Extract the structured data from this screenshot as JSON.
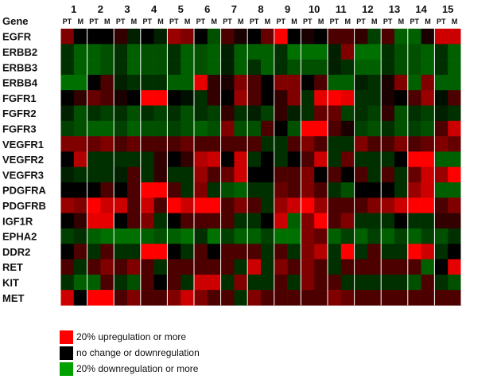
{
  "chart_data": {
    "type": "heatmap",
    "row_header": "Gene",
    "columns": [
      "1",
      "2",
      "3",
      "4",
      "5",
      "6",
      "7",
      "8",
      "9",
      "10",
      "11",
      "12",
      "13",
      "14",
      "15"
    ],
    "subcolumns": [
      "PT",
      "M"
    ],
    "rows": [
      "EGFR",
      "ERBB2",
      "ERBB3",
      "ERBB4",
      "FGFR1",
      "FGFR2",
      "FGFR3",
      "VEGFR1",
      "VEGFR2",
      "VEGFR3",
      "PDGFRA",
      "PDGFRB",
      "IGF1R",
      "EPHA2",
      "DDR2",
      "RET",
      "KIT",
      "MET"
    ],
    "scale": "-1 = 20% downregulation or more (green), 0 = no change (black), 1 = 20% upregulation or more (red)",
    "values": [
      [
        0.5,
        0,
        0,
        0,
        0.2,
        -0.2,
        0,
        -0.2,
        0.6,
        0.5,
        0,
        -0.5,
        0.3,
        0.1,
        0,
        0.4,
        1,
        0,
        0.1,
        0,
        0.3,
        0.3,
        0.2,
        -0.4,
        0.3,
        -0.6,
        -0.6,
        0.1,
        0.8,
        0.8
      ],
      [
        -0.3,
        -0.6,
        -0.6,
        -0.5,
        -0.3,
        -0.6,
        -0.5,
        -0.5,
        -0.3,
        -0.6,
        -0.5,
        -0.6,
        -0.2,
        -0.6,
        -0.6,
        -0.6,
        -0.3,
        -0.7,
        -0.7,
        -0.7,
        -0.2,
        0.5,
        -0.7,
        -0.7,
        -0.3,
        -0.5,
        -0.5,
        -0.6,
        -0.3,
        -0.6
      ],
      [
        -0.3,
        -0.6,
        -0.6,
        -0.5,
        -0.3,
        -0.6,
        -0.5,
        -0.5,
        -0.3,
        -0.6,
        -0.5,
        -0.6,
        -0.2,
        -0.6,
        -0.3,
        -0.6,
        -0.3,
        -0.5,
        -0.5,
        -0.5,
        -0.2,
        -0.3,
        -0.6,
        -0.6,
        -0.3,
        -0.5,
        -0.5,
        -0.6,
        -0.3,
        -0.6
      ],
      [
        -0.7,
        -0.7,
        0,
        0.3,
        -0.2,
        -0.3,
        -0.3,
        -0.3,
        -0.6,
        -0.6,
        0.9,
        0.2,
        0.1,
        0.5,
        0.3,
        0,
        0.5,
        0.5,
        0,
        0.3,
        -0.6,
        -0.6,
        -0.2,
        -0.3,
        0.1,
        0.5,
        -0.6,
        0.5,
        -0.6,
        -0.6
      ],
      [
        0,
        0.2,
        0.4,
        0.3,
        0.1,
        0,
        1,
        1,
        0,
        -0.1,
        -0.3,
        0.2,
        0,
        0.6,
        0.3,
        0,
        0.2,
        0.5,
        -0.3,
        0.9,
        1,
        0.9,
        -0.3,
        -0.3,
        0.1,
        0,
        0.3,
        0.6,
        -0.1,
        0.3
      ],
      [
        -0.2,
        -0.5,
        -0.3,
        -0.4,
        -0.3,
        -0.5,
        -0.3,
        -0.4,
        -0.3,
        -0.5,
        -0.3,
        -0.4,
        0.2,
        -0.3,
        -0.2,
        -0.4,
        0.2,
        -0.2,
        -0.3,
        0.4,
        0.4,
        -0.4,
        -0.3,
        -0.4,
        0.2,
        -0.5,
        -0.3,
        -0.4,
        -0.2,
        -0.3
      ],
      [
        -0.4,
        -0.5,
        -0.6,
        -0.6,
        -0.4,
        -0.6,
        -0.5,
        -0.5,
        -0.4,
        -0.5,
        -0.6,
        -0.5,
        0.5,
        -0.5,
        -0.5,
        0.3,
        0,
        -0.5,
        1,
        1,
        0.3,
        0.1,
        -0.4,
        -0.5,
        -0.3,
        -0.5,
        -0.4,
        -0.5,
        0.3,
        0.8
      ],
      [
        0.5,
        0.5,
        0.4,
        0.5,
        0.3,
        0.4,
        0.3,
        0.3,
        0.3,
        0.4,
        0.3,
        0.3,
        0.3,
        0.3,
        0.3,
        -0.3,
        -0.3,
        0.3,
        0.5,
        0.3,
        -0.3,
        -0.3,
        0.5,
        0.3,
        0.3,
        0.5,
        0.3,
        0.4,
        0.5,
        0.4
      ],
      [
        0,
        0.7,
        -0.3,
        -0.3,
        -0.3,
        -0.3,
        -0.3,
        0.2,
        0,
        0.2,
        0.7,
        0.8,
        0,
        0.8,
        -0.3,
        0,
        -0.3,
        0,
        0.3,
        0.8,
        -0.3,
        0.4,
        -0.3,
        -0.3,
        -0.3,
        0,
        1,
        1,
        -0.6,
        -0.6
      ],
      [
        -0.2,
        -0.3,
        -0.3,
        -0.3,
        -0.2,
        0.3,
        -0.3,
        0.2,
        -0.3,
        -0.3,
        0.6,
        0.3,
        0.4,
        0.8,
        0,
        0,
        0.3,
        0.3,
        0.5,
        0,
        0.3,
        0,
        0.3,
        -0.3,
        0.3,
        -0.3,
        0.4,
        0.8,
        0.6,
        1
      ],
      [
        0,
        0,
        0,
        0.3,
        0,
        0.3,
        1,
        1,
        0.3,
        -0.3,
        0.5,
        -0.3,
        -0.5,
        -0.6,
        -0.3,
        -0.3,
        0.4,
        0.3,
        0.5,
        0.3,
        -0.3,
        -0.5,
        0,
        0,
        0,
        -0.3,
        0.6,
        0.8,
        -0.6,
        -0.6
      ],
      [
        0.6,
        0.5,
        1,
        0.8,
        0.8,
        0.3,
        0.8,
        0.3,
        1,
        0.8,
        1,
        1,
        0.3,
        0.5,
        0.3,
        -0.3,
        0.6,
        0.8,
        1,
        0.6,
        0.3,
        0.3,
        0.3,
        0.5,
        0.6,
        0.8,
        1,
        1,
        0.3,
        0.5
      ],
      [
        0,
        0.2,
        0.9,
        0.9,
        0,
        0.3,
        0.5,
        -0.3,
        0,
        0.3,
        0.3,
        0.3,
        0.3,
        -0.3,
        -0.3,
        0,
        0.8,
        -0.6,
        0.5,
        1,
        0.3,
        0.5,
        -0.3,
        -0.3,
        -0.3,
        0,
        -0.3,
        -0.3,
        0.2,
        0.2
      ],
      [
        -0.4,
        -0.3,
        -0.6,
        -0.7,
        -0.7,
        -0.7,
        -0.6,
        -0.5,
        -0.6,
        -0.7,
        -0.3,
        -0.7,
        -0.4,
        -0.6,
        -0.6,
        -0.4,
        -0.7,
        -0.7,
        0.5,
        0.4,
        -0.6,
        -0.4,
        -0.6,
        -0.4,
        -0.6,
        -0.4,
        -0.6,
        -0.4,
        -0.5,
        -0.3
      ],
      [
        0,
        0.3,
        -0.3,
        0.3,
        -0.3,
        -0.3,
        1,
        1,
        0,
        -0.3,
        0.3,
        0,
        0.3,
        0.3,
        0.3,
        -0.3,
        0.3,
        -0.3,
        0.5,
        0.7,
        -0.3,
        1,
        -0.3,
        0.3,
        -0.3,
        -0.3,
        1,
        0.8,
        -0.3,
        0
      ],
      [
        0.3,
        -0.3,
        0.3,
        0.5,
        0.3,
        0.5,
        0.3,
        -0.3,
        0.3,
        0.3,
        0.3,
        0.3,
        0.3,
        -0.3,
        0.8,
        -0.3,
        0.5,
        0.3,
        0.5,
        0.3,
        -0.3,
        0.3,
        0.3,
        0.3,
        0.3,
        0.3,
        0.3,
        -0.6,
        0,
        0.9
      ],
      [
        -0.3,
        -0.6,
        -0.6,
        0.3,
        -0.3,
        -0.5,
        0.3,
        0,
        0.3,
        -0.3,
        0.8,
        0.8,
        -0.3,
        0.5,
        -0.3,
        -0.3,
        0.3,
        -0.3,
        0.5,
        0.3,
        0.3,
        -0.3,
        -0.3,
        -0.3,
        -0.3,
        -0.3,
        -0.5,
        0.3,
        -0.3,
        -0.5
      ],
      [
        0.8,
        0,
        1,
        1,
        0.3,
        0.5,
        0.3,
        0.3,
        0.5,
        0.8,
        0.5,
        0.3,
        0.3,
        -0.3,
        0.5,
        0.3,
        0.3,
        0.3,
        0.3,
        0.3,
        0.5,
        0.4,
        0.3,
        0.3,
        0.3,
        0.3,
        0.3,
        0.3,
        0.3,
        0.3
      ]
    ],
    "legend": [
      {
        "label": "20% upregulation or more",
        "color": "#ff0000"
      },
      {
        "label": "no change or downregulation",
        "color": "#000000"
      },
      {
        "label": "20% downregulation or more",
        "color": "#00a000"
      }
    ]
  }
}
